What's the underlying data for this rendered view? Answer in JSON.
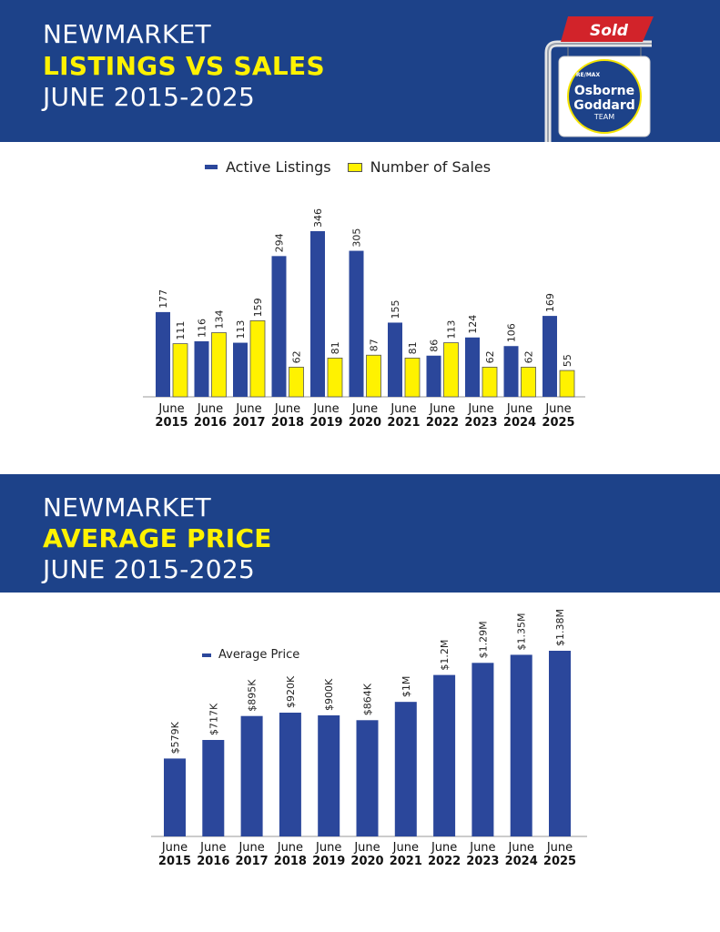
{
  "header": {
    "line1": "NEWMARKET",
    "line2": "LISTINGS VS SALES",
    "line3": "JUNE 2015-2025"
  },
  "section2": {
    "line1": "NEWMARKET",
    "line2": "AVERAGE PRICE",
    "line3": "JUNE 2015-2025"
  },
  "logo": {
    "sign_text": "Sold",
    "brand_small": "RE/MAX",
    "name1": "Osborne",
    "name2": "Goddard",
    "name3": "TEAM"
  },
  "colors": {
    "banner": "#1d4289",
    "accent_text": "#fff200",
    "active_bar": "#2b479b",
    "sales_bar": "#fff200",
    "price_bar": "#2b479b",
    "sign_red": "#d2232a"
  },
  "chart_data": [
    {
      "type": "bar",
      "legend_position": "top",
      "categories": [
        "June|2015",
        "June|2016",
        "June|2017",
        "June|2018",
        "June|2019",
        "June|2020",
        "June|2021",
        "June|2022",
        "June|2023",
        "June|2024",
        "June|2025"
      ],
      "series": [
        {
          "name": "Active Listings",
          "values": [
            177,
            116,
            113,
            294,
            346,
            305,
            155,
            86,
            124,
            106,
            169
          ],
          "labels": [
            "177",
            "116",
            "113",
            "294",
            "346",
            "305",
            "155",
            "86",
            "124",
            "106",
            "169"
          ]
        },
        {
          "name": "Number of Sales",
          "values": [
            111,
            134,
            159,
            62,
            81,
            87,
            81,
            113,
            62,
            62,
            55
          ],
          "labels": [
            "111",
            "134",
            "159",
            "62",
            "81",
            "87",
            "81",
            "113",
            "62",
            "62",
            "55"
          ]
        }
      ],
      "ylim": [
        0,
        346
      ]
    },
    {
      "type": "bar",
      "legend_position": "top-left",
      "categories": [
        "June|2015",
        "June|2016",
        "June|2017",
        "June|2018",
        "June|2019",
        "June|2020",
        "June|2021",
        "June|2022",
        "June|2023",
        "June|2024",
        "June|2025"
      ],
      "series": [
        {
          "name": "Average Price",
          "values": [
            579000,
            717000,
            895000,
            920000,
            900000,
            864000,
            1000000,
            1200000,
            1290000,
            1350000,
            1380000
          ],
          "labels": [
            "$579K",
            "$717K",
            "$895K",
            "$920K",
            "$900K",
            "$864K",
            "$1M",
            "$1.2M",
            "$1.29M",
            "$1.35M",
            "$1.38M"
          ]
        }
      ],
      "ylim": [
        0,
        1380000
      ]
    }
  ]
}
